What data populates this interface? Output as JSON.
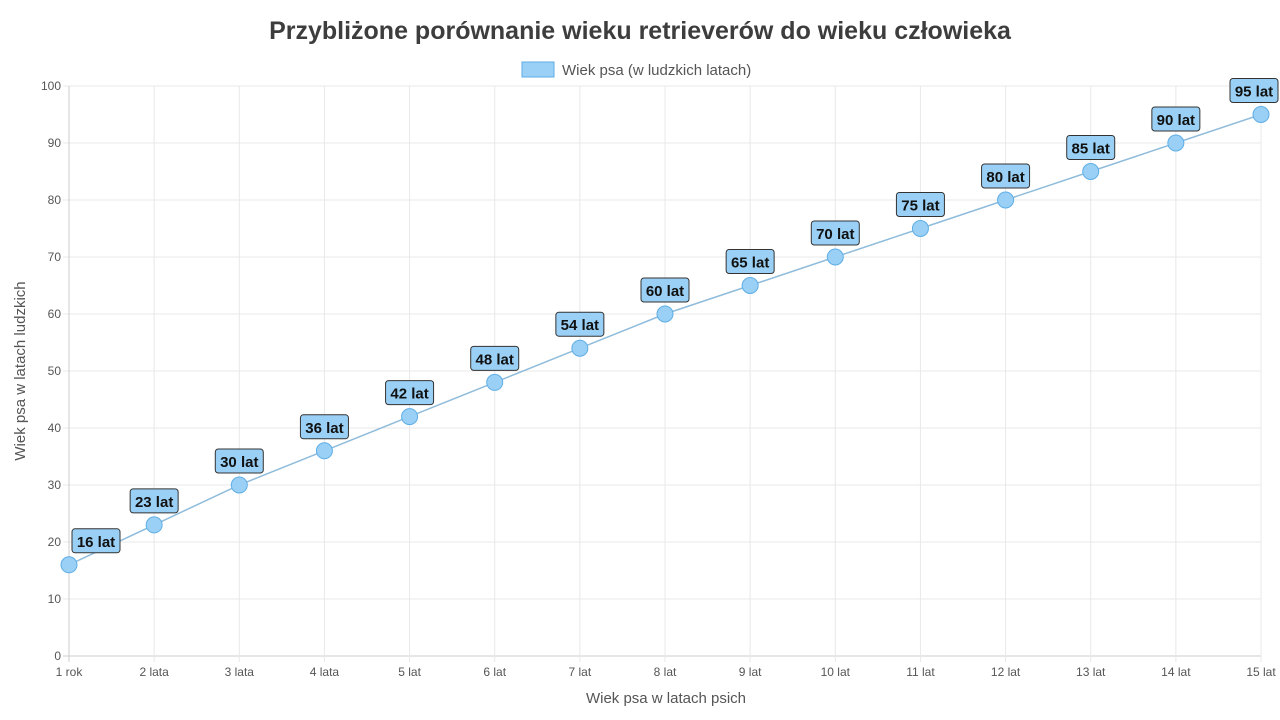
{
  "chart_data": {
    "type": "line",
    "title": "Przybliżone porównanie wieku retrieverów do wieku człowieka",
    "xlabel": "Wiek psa w latach psich",
    "ylabel": "Wiek psa w latach ludzkich",
    "categories": [
      "1 rok",
      "2 lata",
      "3 lata",
      "4 lata",
      "5 lat",
      "6 lat",
      "7 lat",
      "8 lat",
      "9 lat",
      "10 lat",
      "11 lat",
      "12 lat",
      "13 lat",
      "14 lat",
      "15 lat"
    ],
    "series": [
      {
        "name": "Wiek psa (w ludzkich latach)",
        "values": [
          16,
          23,
          30,
          36,
          42,
          48,
          54,
          60,
          65,
          70,
          75,
          80,
          85,
          90,
          95
        ],
        "data_labels": [
          "16 lat",
          "23 lat",
          "30 lat",
          "36 lat",
          "42 lat",
          "48 lat",
          "54 lat",
          "60 lat",
          "65 lat",
          "70 lat",
          "75 lat",
          "80 lat",
          "85 lat",
          "90 lat",
          "95 lat"
        ]
      }
    ],
    "ylim": [
      0,
      100
    ],
    "yticks": [
      "0",
      "10",
      "20",
      "30",
      "40",
      "50",
      "60",
      "70",
      "80",
      "90",
      "100"
    ],
    "grid": true,
    "legend": "top",
    "colors": {
      "point_fill": "#9ad0f5",
      "point_stroke": "#5eaee6",
      "line": "#8fbcdb",
      "label_fill": "#9ad0f5"
    }
  }
}
